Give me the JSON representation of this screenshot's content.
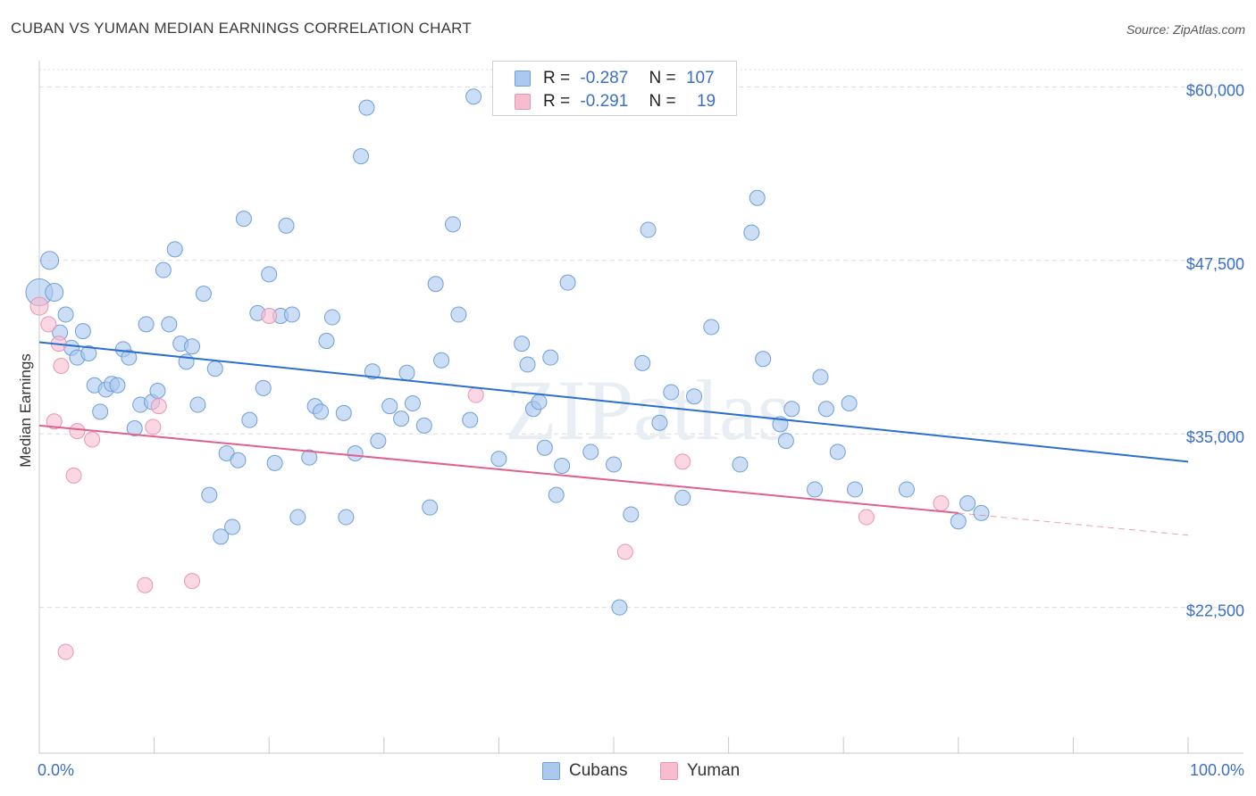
{
  "title": "CUBAN VS YUMAN MEDIAN EARNINGS CORRELATION CHART",
  "source": "Source: ZipAtlas.com",
  "watermark": "ZIPatlas",
  "colors": {
    "cubans_fill": "#aac8f0",
    "cubans_stroke": "#6f9fd8",
    "cubans_line": "#2b6fd0",
    "yuman_fill": "#f7bcd0",
    "yuman_stroke": "#e895b3",
    "yuman_line": "#e0608e",
    "axis_text": "#3a6fc4",
    "grid": "#dcdcdc"
  },
  "stats": {
    "r_label": "R =",
    "n_label": "N =",
    "cubans": {
      "r": "-0.287",
      "n": "107"
    },
    "yuman": {
      "r": "-0.291",
      "n": "19"
    }
  },
  "legend": {
    "cubans": "Cubans",
    "yuman": "Yuman"
  },
  "chart_data": {
    "type": "scatter",
    "title": "CUBAN VS YUMAN MEDIAN EARNINGS CORRELATION CHART",
    "xlabel": "",
    "ylabel": "Median Earnings",
    "xlim": [
      0,
      100
    ],
    "ylim": [
      12000,
      61500
    ],
    "x_tick_labels": [
      "0.0%",
      "100.0%"
    ],
    "y_ticks": [
      22500,
      35000,
      47500,
      60000
    ],
    "y_tick_labels": [
      "$22,500",
      "$35,000",
      "$47,500",
      "$60,000"
    ],
    "grid": true,
    "legend_position": "bottom-center",
    "series": [
      {
        "name": "Cubans",
        "trend": {
          "x": [
            0,
            100
          ],
          "y": [
            41600,
            33000
          ]
        },
        "points": [
          [
            0.0,
            45200
          ],
          [
            0.9,
            47500
          ],
          [
            1.3,
            45200
          ],
          [
            1.8,
            42300
          ],
          [
            2.3,
            43600
          ],
          [
            2.8,
            41200
          ],
          [
            3.3,
            40500
          ],
          [
            3.8,
            42400
          ],
          [
            4.3,
            40800
          ],
          [
            4.8,
            38500
          ],
          [
            5.3,
            36600
          ],
          [
            5.8,
            38200
          ],
          [
            6.3,
            38600
          ],
          [
            6.8,
            38500
          ],
          [
            7.3,
            41100
          ],
          [
            7.8,
            40500
          ],
          [
            8.3,
            35400
          ],
          [
            8.8,
            37100
          ],
          [
            9.3,
            42900
          ],
          [
            9.8,
            37300
          ],
          [
            10.3,
            38100
          ],
          [
            10.8,
            46800
          ],
          [
            11.3,
            42900
          ],
          [
            11.8,
            48300
          ],
          [
            12.3,
            41500
          ],
          [
            12.8,
            40200
          ],
          [
            13.3,
            41300
          ],
          [
            13.8,
            37100
          ],
          [
            14.3,
            45100
          ],
          [
            14.8,
            30600
          ],
          [
            15.3,
            39700
          ],
          [
            15.8,
            27600
          ],
          [
            16.3,
            33600
          ],
          [
            16.8,
            28300
          ],
          [
            17.3,
            33100
          ],
          [
            17.8,
            50500
          ],
          [
            18.3,
            36000
          ],
          [
            19.0,
            43700
          ],
          [
            19.5,
            38300
          ],
          [
            20.0,
            46500
          ],
          [
            20.5,
            32900
          ],
          [
            21.0,
            43500
          ],
          [
            21.5,
            50000
          ],
          [
            22.0,
            43600
          ],
          [
            22.5,
            29000
          ],
          [
            23.5,
            33300
          ],
          [
            24.0,
            37000
          ],
          [
            24.5,
            36600
          ],
          [
            25.0,
            41700
          ],
          [
            25.5,
            43400
          ],
          [
            26.5,
            36500
          ],
          [
            26.7,
            29000
          ],
          [
            27.5,
            33600
          ],
          [
            28.0,
            55000
          ],
          [
            28.5,
            58500
          ],
          [
            29.0,
            39500
          ],
          [
            29.5,
            34500
          ],
          [
            30.5,
            37000
          ],
          [
            31.5,
            36100
          ],
          [
            32.0,
            39400
          ],
          [
            32.5,
            37200
          ],
          [
            33.5,
            35600
          ],
          [
            34.0,
            29700
          ],
          [
            34.5,
            45800
          ],
          [
            35.0,
            40300
          ],
          [
            36.0,
            50100
          ],
          [
            36.5,
            43600
          ],
          [
            37.5,
            36000
          ],
          [
            37.8,
            59300
          ],
          [
            40.0,
            33200
          ],
          [
            42.0,
            41500
          ],
          [
            42.5,
            40000
          ],
          [
            43.0,
            36800
          ],
          [
            43.5,
            37300
          ],
          [
            44.0,
            34000
          ],
          [
            44.5,
            40500
          ],
          [
            45.0,
            30600
          ],
          [
            45.5,
            32700
          ],
          [
            46.0,
            45900
          ],
          [
            48.0,
            33700
          ],
          [
            50.0,
            32800
          ],
          [
            50.5,
            22500
          ],
          [
            51.5,
            29200
          ],
          [
            52.5,
            40100
          ],
          [
            53.0,
            49700
          ],
          [
            54.0,
            35800
          ],
          [
            55.0,
            38000
          ],
          [
            56.0,
            30400
          ],
          [
            57.0,
            37700
          ],
          [
            58.5,
            42700
          ],
          [
            61.0,
            32800
          ],
          [
            62.0,
            49500
          ],
          [
            62.5,
            52000
          ],
          [
            63.0,
            40400
          ],
          [
            64.5,
            35700
          ],
          [
            65.0,
            34500
          ],
          [
            65.5,
            36800
          ],
          [
            67.5,
            31000
          ],
          [
            68.0,
            39100
          ],
          [
            68.5,
            36800
          ],
          [
            69.5,
            33700
          ],
          [
            70.5,
            37200
          ],
          [
            71.0,
            31000
          ],
          [
            75.5,
            31000
          ],
          [
            80.0,
            28700
          ],
          [
            80.8,
            30000
          ],
          [
            82.0,
            29300
          ]
        ]
      },
      {
        "name": "Yuman",
        "trend": {
          "x": [
            0,
            80
          ],
          "y": [
            35600,
            29300
          ]
        },
        "trend_dashed": {
          "x": [
            80,
            100
          ],
          "y": [
            29300,
            27700
          ]
        },
        "points": [
          [
            0.0,
            44200
          ],
          [
            0.8,
            42900
          ],
          [
            1.3,
            35900
          ],
          [
            1.7,
            41500
          ],
          [
            1.9,
            39900
          ],
          [
            3.0,
            32000
          ],
          [
            3.3,
            35200
          ],
          [
            4.6,
            34600
          ],
          [
            9.2,
            24100
          ],
          [
            9.9,
            35500
          ],
          [
            10.4,
            37000
          ],
          [
            13.3,
            24400
          ],
          [
            20.0,
            43500
          ],
          [
            38.0,
            37800
          ],
          [
            51.0,
            26500
          ],
          [
            56.0,
            33000
          ],
          [
            72.0,
            29000
          ],
          [
            78.5,
            30000
          ],
          [
            2.3,
            19300
          ]
        ]
      }
    ]
  }
}
